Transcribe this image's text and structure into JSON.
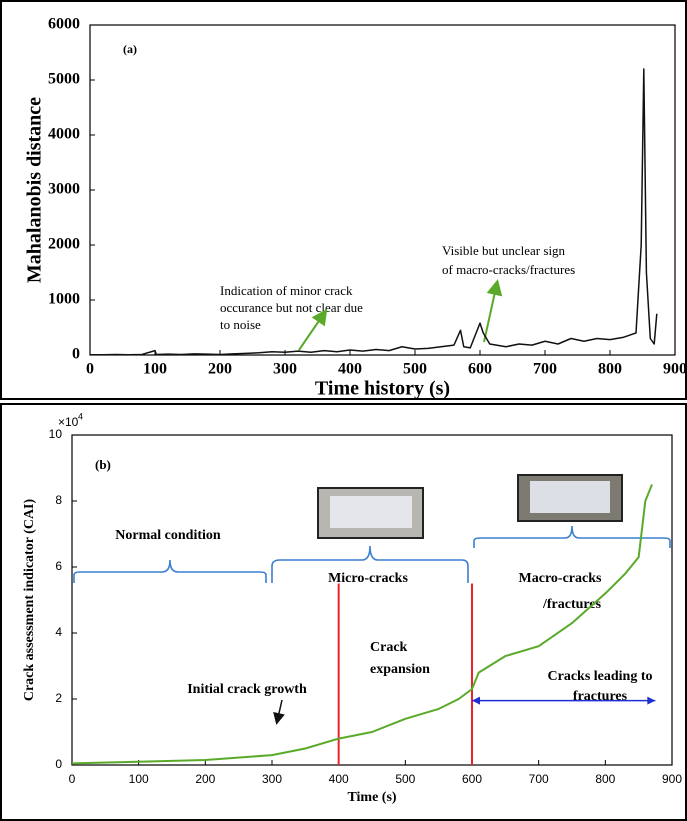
{
  "chart_data": [
    {
      "type": "line",
      "panel_label": "(a)",
      "xlabel": "Time history (s)",
      "ylabel": "Mahalanobis distance",
      "x": [
        0,
        20,
        40,
        60,
        80,
        100,
        102,
        120,
        140,
        160,
        180,
        200,
        220,
        240,
        260,
        280,
        300,
        320,
        340,
        360,
        380,
        400,
        420,
        440,
        460,
        480,
        500,
        520,
        540,
        560,
        570,
        575,
        585,
        600,
        605,
        615,
        640,
        660,
        680,
        700,
        720,
        740,
        760,
        780,
        800,
        820,
        840,
        848,
        852,
        856,
        862,
        868,
        872
      ],
      "series": [
        {
          "color": "#111111",
          "values": [
            5,
            5,
            10,
            5,
            10,
            80,
            10,
            15,
            10,
            20,
            15,
            10,
            20,
            30,
            40,
            60,
            50,
            70,
            50,
            80,
            60,
            90,
            70,
            100,
            80,
            150,
            110,
            120,
            150,
            180,
            450,
            150,
            130,
            580,
            400,
            200,
            150,
            200,
            180,
            250,
            200,
            300,
            250,
            300,
            280,
            320,
            400,
            2000,
            5200,
            1500,
            300,
            200,
            750
          ]
        }
      ],
      "xlim": [
        0,
        900
      ],
      "ylim": [
        0,
        6000
      ],
      "xticks": [
        0,
        100,
        200,
        300,
        400,
        500,
        600,
        700,
        800,
        900
      ],
      "yticks": [
        0,
        1000,
        2000,
        3000,
        4000,
        5000,
        6000
      ],
      "annotations": [
        {
          "lines": [
            "Indication of minor crack",
            "occurance but not clear due",
            "to noise"
          ]
        },
        {
          "lines": [
            "Visible but unclear sign",
            "of macro-cracks/fractures"
          ]
        }
      ]
    },
    {
      "type": "line",
      "panel_label": "(b)",
      "xlabel": "Time (s)",
      "ylabel": "Crack assessment indicator (CAI)",
      "y_multiplier": {
        "base": "×10",
        "exponent": "4"
      },
      "x": [
        0,
        100,
        200,
        300,
        350,
        400,
        450,
        500,
        550,
        580,
        600,
        610,
        650,
        700,
        750,
        800,
        830,
        850,
        860,
        870
      ],
      "series": [
        {
          "color": "#5aaa2a",
          "values": [
            0.05,
            0.1,
            0.15,
            0.3,
            0.5,
            0.8,
            1.0,
            1.4,
            1.7,
            2.0,
            2.3,
            2.8,
            3.3,
            3.6,
            4.3,
            5.2,
            5.8,
            6.3,
            8.0,
            8.5
          ]
        }
      ],
      "xlim": [
        0,
        900
      ],
      "ylim": [
        0,
        10
      ],
      "xticks": [
        0,
        100,
        200,
        300,
        400,
        500,
        600,
        700,
        800,
        900
      ],
      "yticks": [
        0,
        2,
        4,
        6,
        8,
        10
      ],
      "vlines": [
        400,
        600
      ],
      "vline_color": "#e8232a",
      "vline_top": 5.5,
      "span_arrow": {
        "x": [
          600,
          875
        ],
        "y": 1.95,
        "color": "#1f2fd0"
      },
      "annotations": [
        {
          "lines": [
            "Normal condition"
          ]
        },
        {
          "lines": [
            "Micro-cracks"
          ]
        },
        {
          "lines": [
            "Macro-cracks",
            "/fractures"
          ]
        },
        {
          "lines": [
            "Crack",
            "expansion"
          ]
        },
        {
          "lines": [
            "Initial crack growth"
          ]
        },
        {
          "lines": [
            "Cracks leading to",
            "fractures"
          ]
        }
      ]
    }
  ]
}
